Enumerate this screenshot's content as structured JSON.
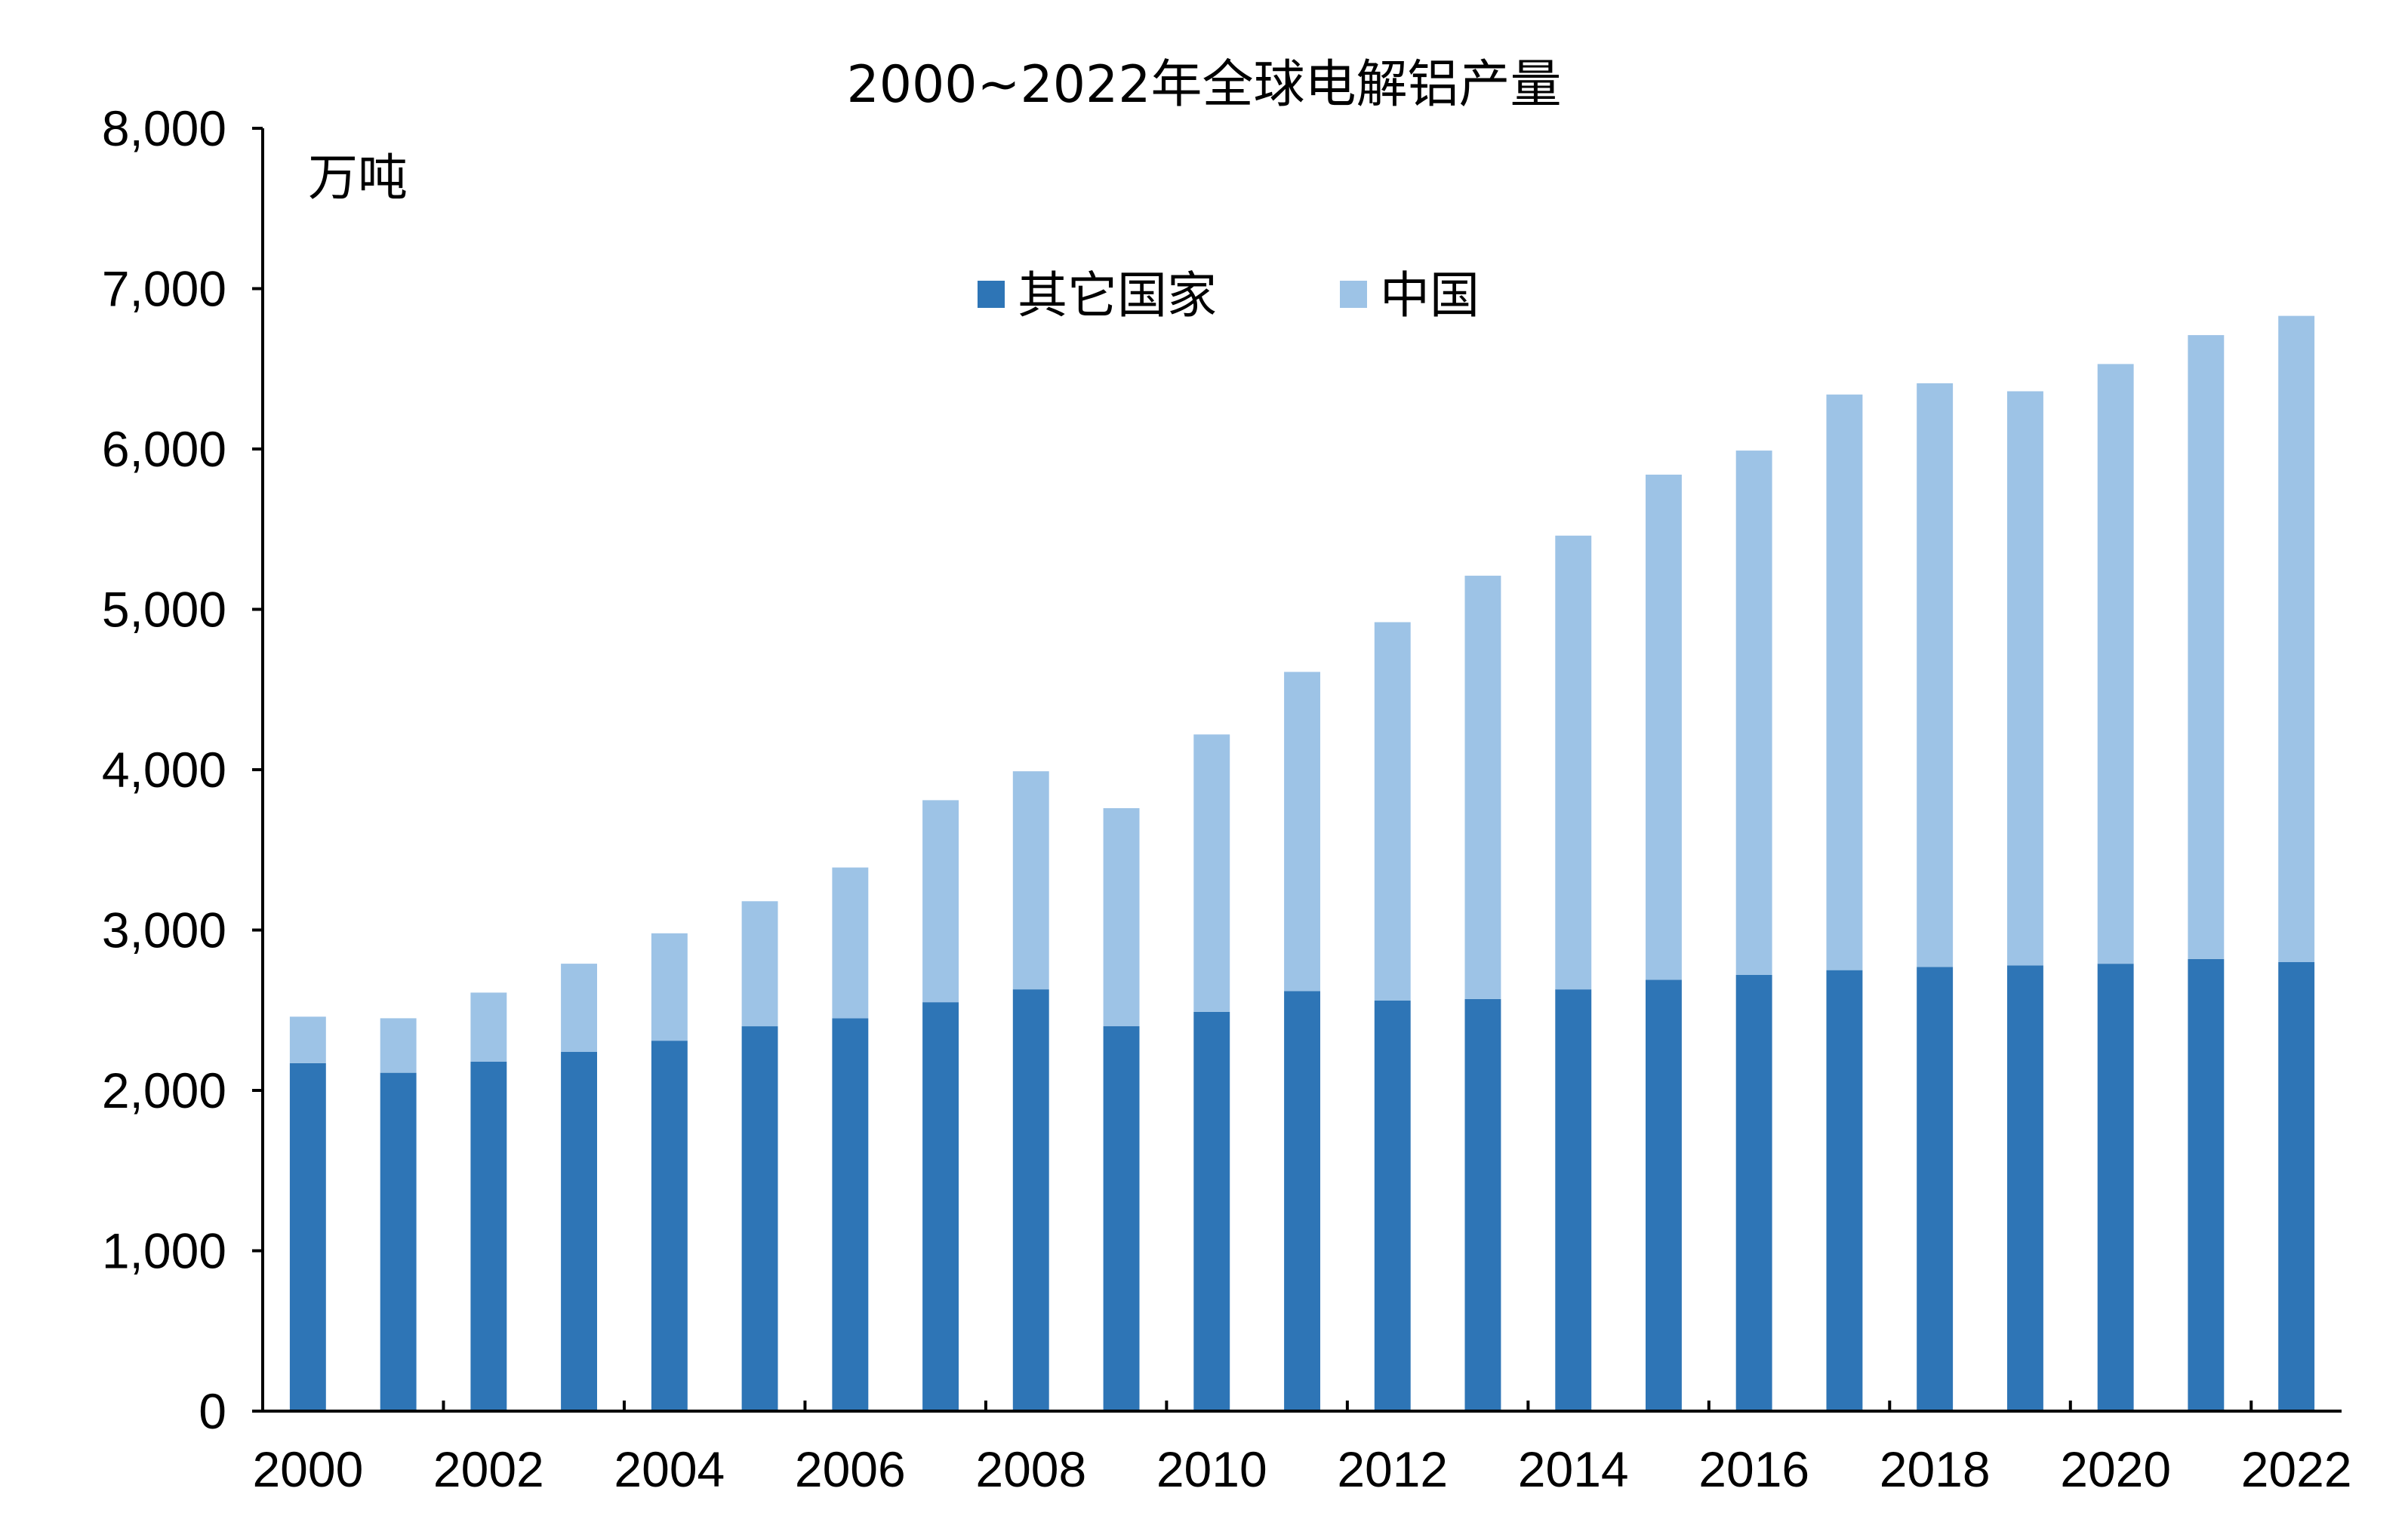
{
  "chart_data": {
    "type": "bar",
    "stacked": true,
    "title": "2000~2022年全球电解铝产量",
    "unit": "万吨",
    "categories": [
      "2000",
      "2001",
      "2002",
      "2003",
      "2004",
      "2005",
      "2006",
      "2007",
      "2008",
      "2009",
      "2010",
      "2011",
      "2012",
      "2013",
      "2014",
      "2015",
      "2016",
      "2017",
      "2018",
      "2019",
      "2020",
      "2021",
      "2022"
    ],
    "x_tick_labels": [
      "2000",
      "2002",
      "2004",
      "2006",
      "2008",
      "2010",
      "2012",
      "2014",
      "2016",
      "2018",
      "2020",
      "2022"
    ],
    "y_tick_labels": [
      "0",
      "1,000",
      "2,000",
      "3,000",
      "4,000",
      "5,000",
      "6,000",
      "7,000",
      "8,000"
    ],
    "ylim": [
      0,
      8000
    ],
    "grid": false,
    "legend_position": "top-center",
    "series": [
      {
        "name": "其它国家",
        "color": "#2e75b6",
        "values": [
          2170,
          2110,
          2180,
          2240,
          2310,
          2400,
          2450,
          2550,
          2630,
          2400,
          2490,
          2620,
          2560,
          2570,
          2630,
          2690,
          2720,
          2750,
          2770,
          2780,
          2790,
          2820,
          2800
        ]
      },
      {
        "name": "中国",
        "color": "#9dc3e6",
        "values": [
          290,
          340,
          430,
          550,
          670,
          780,
          940,
          1260,
          1360,
          1360,
          1730,
          1990,
          2360,
          2640,
          2830,
          3150,
          3270,
          3590,
          3640,
          3580,
          3740,
          3890,
          4030
        ]
      }
    ]
  }
}
